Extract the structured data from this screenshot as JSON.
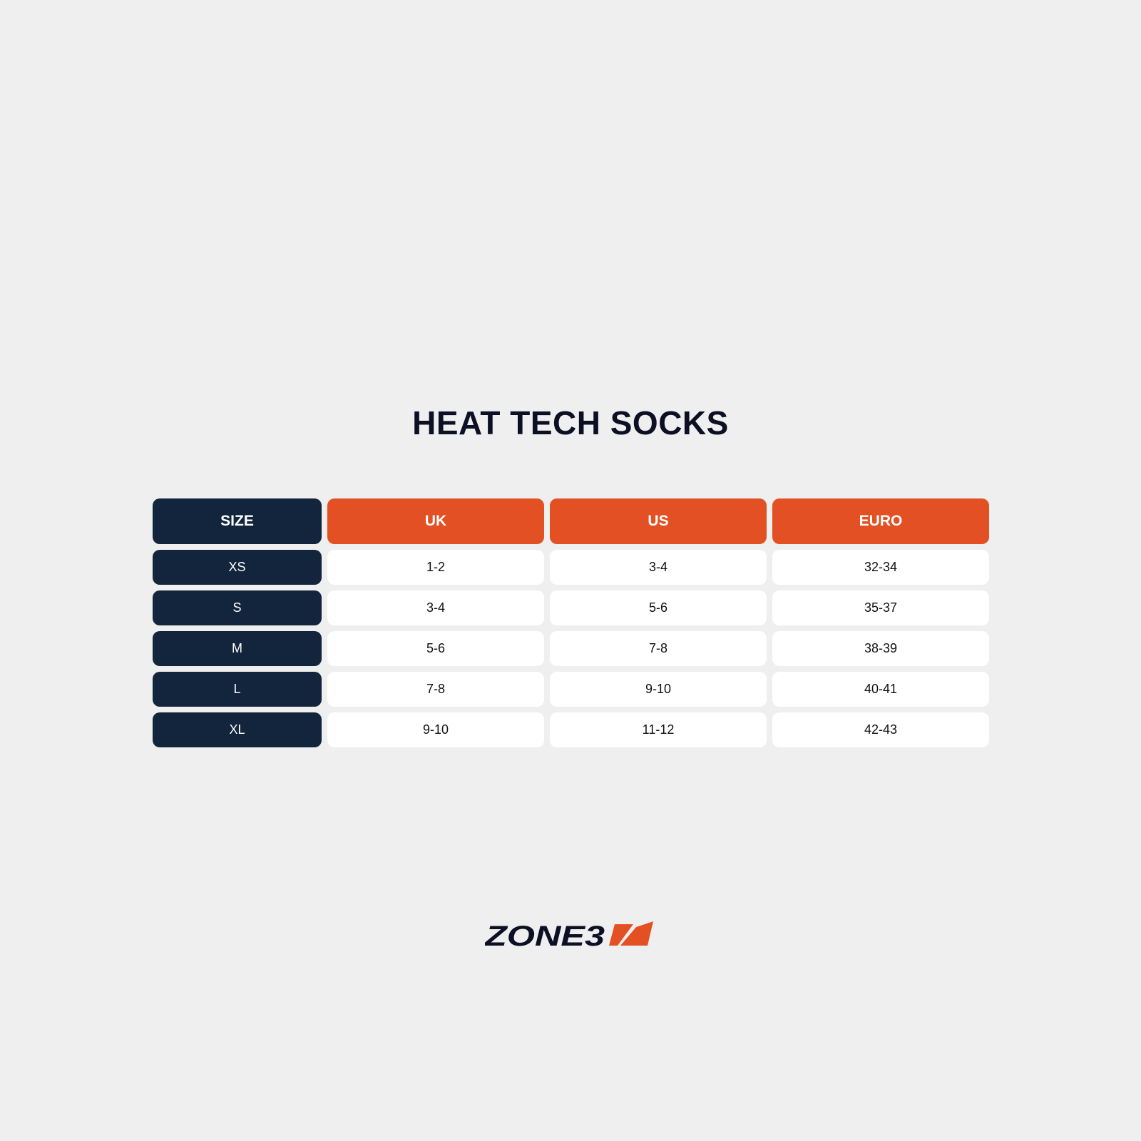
{
  "title": "HEAT TECH SOCKS",
  "colors": {
    "navy": "#12253d",
    "orange": "#e35024",
    "background": "#efefef"
  },
  "table": {
    "headers": [
      "SIZE",
      "UK",
      "US",
      "EURO"
    ],
    "rows": [
      [
        "XS",
        "1-2",
        "3-4",
        "32-34"
      ],
      [
        "S",
        "3-4",
        "5-6",
        "35-37"
      ],
      [
        "M",
        "5-6",
        "7-8",
        "38-39"
      ],
      [
        "L",
        "7-8",
        "9-10",
        "40-41"
      ],
      [
        "XL",
        "9-10",
        "11-12",
        "42-43"
      ]
    ]
  },
  "logo": {
    "text": "ZONE3"
  }
}
